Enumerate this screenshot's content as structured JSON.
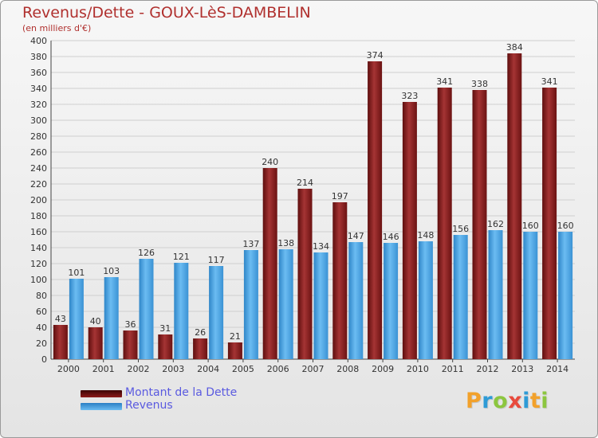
{
  "title": "Revenus/Dette - GOUX-LèS-DAMBELIN",
  "subtitle": "(en milliers d'€)",
  "colors": {
    "series_debt": "#8b1a1a",
    "series_revenue": "#4aa3e6",
    "text_accent": "#b0302e",
    "legend_text": "#5a5ae0"
  },
  "chart_data": {
    "type": "bar",
    "categories": [
      "2000",
      "2001",
      "2002",
      "2003",
      "2004",
      "2005",
      "2006",
      "2007",
      "2008",
      "2009",
      "2010",
      "2011",
      "2012",
      "2013",
      "2014"
    ],
    "series": [
      {
        "name": "Montant de la Dette",
        "values": [
          43,
          40,
          36,
          31,
          26,
          21,
          240,
          214,
          197,
          374,
          323,
          341,
          338,
          384,
          341
        ]
      },
      {
        "name": "Revenus",
        "values": [
          101,
          103,
          126,
          121,
          117,
          137,
          138,
          134,
          147,
          146,
          148,
          156,
          162,
          160,
          160
        ]
      }
    ],
    "ylim": [
      0,
      400
    ],
    "ytick_step": 20,
    "grid": true
  },
  "legend": {
    "items": [
      "Montant de la Dette",
      "Revenus"
    ]
  },
  "logo": {
    "letters": [
      "P",
      "r",
      "o",
      "x",
      "i",
      "t",
      "i"
    ],
    "colors": [
      "#f2a12b",
      "#2e9bd6",
      "#8cc63f",
      "#e84a3c",
      "#2e9bd6",
      "#f2a12b",
      "#8cc63f"
    ]
  }
}
